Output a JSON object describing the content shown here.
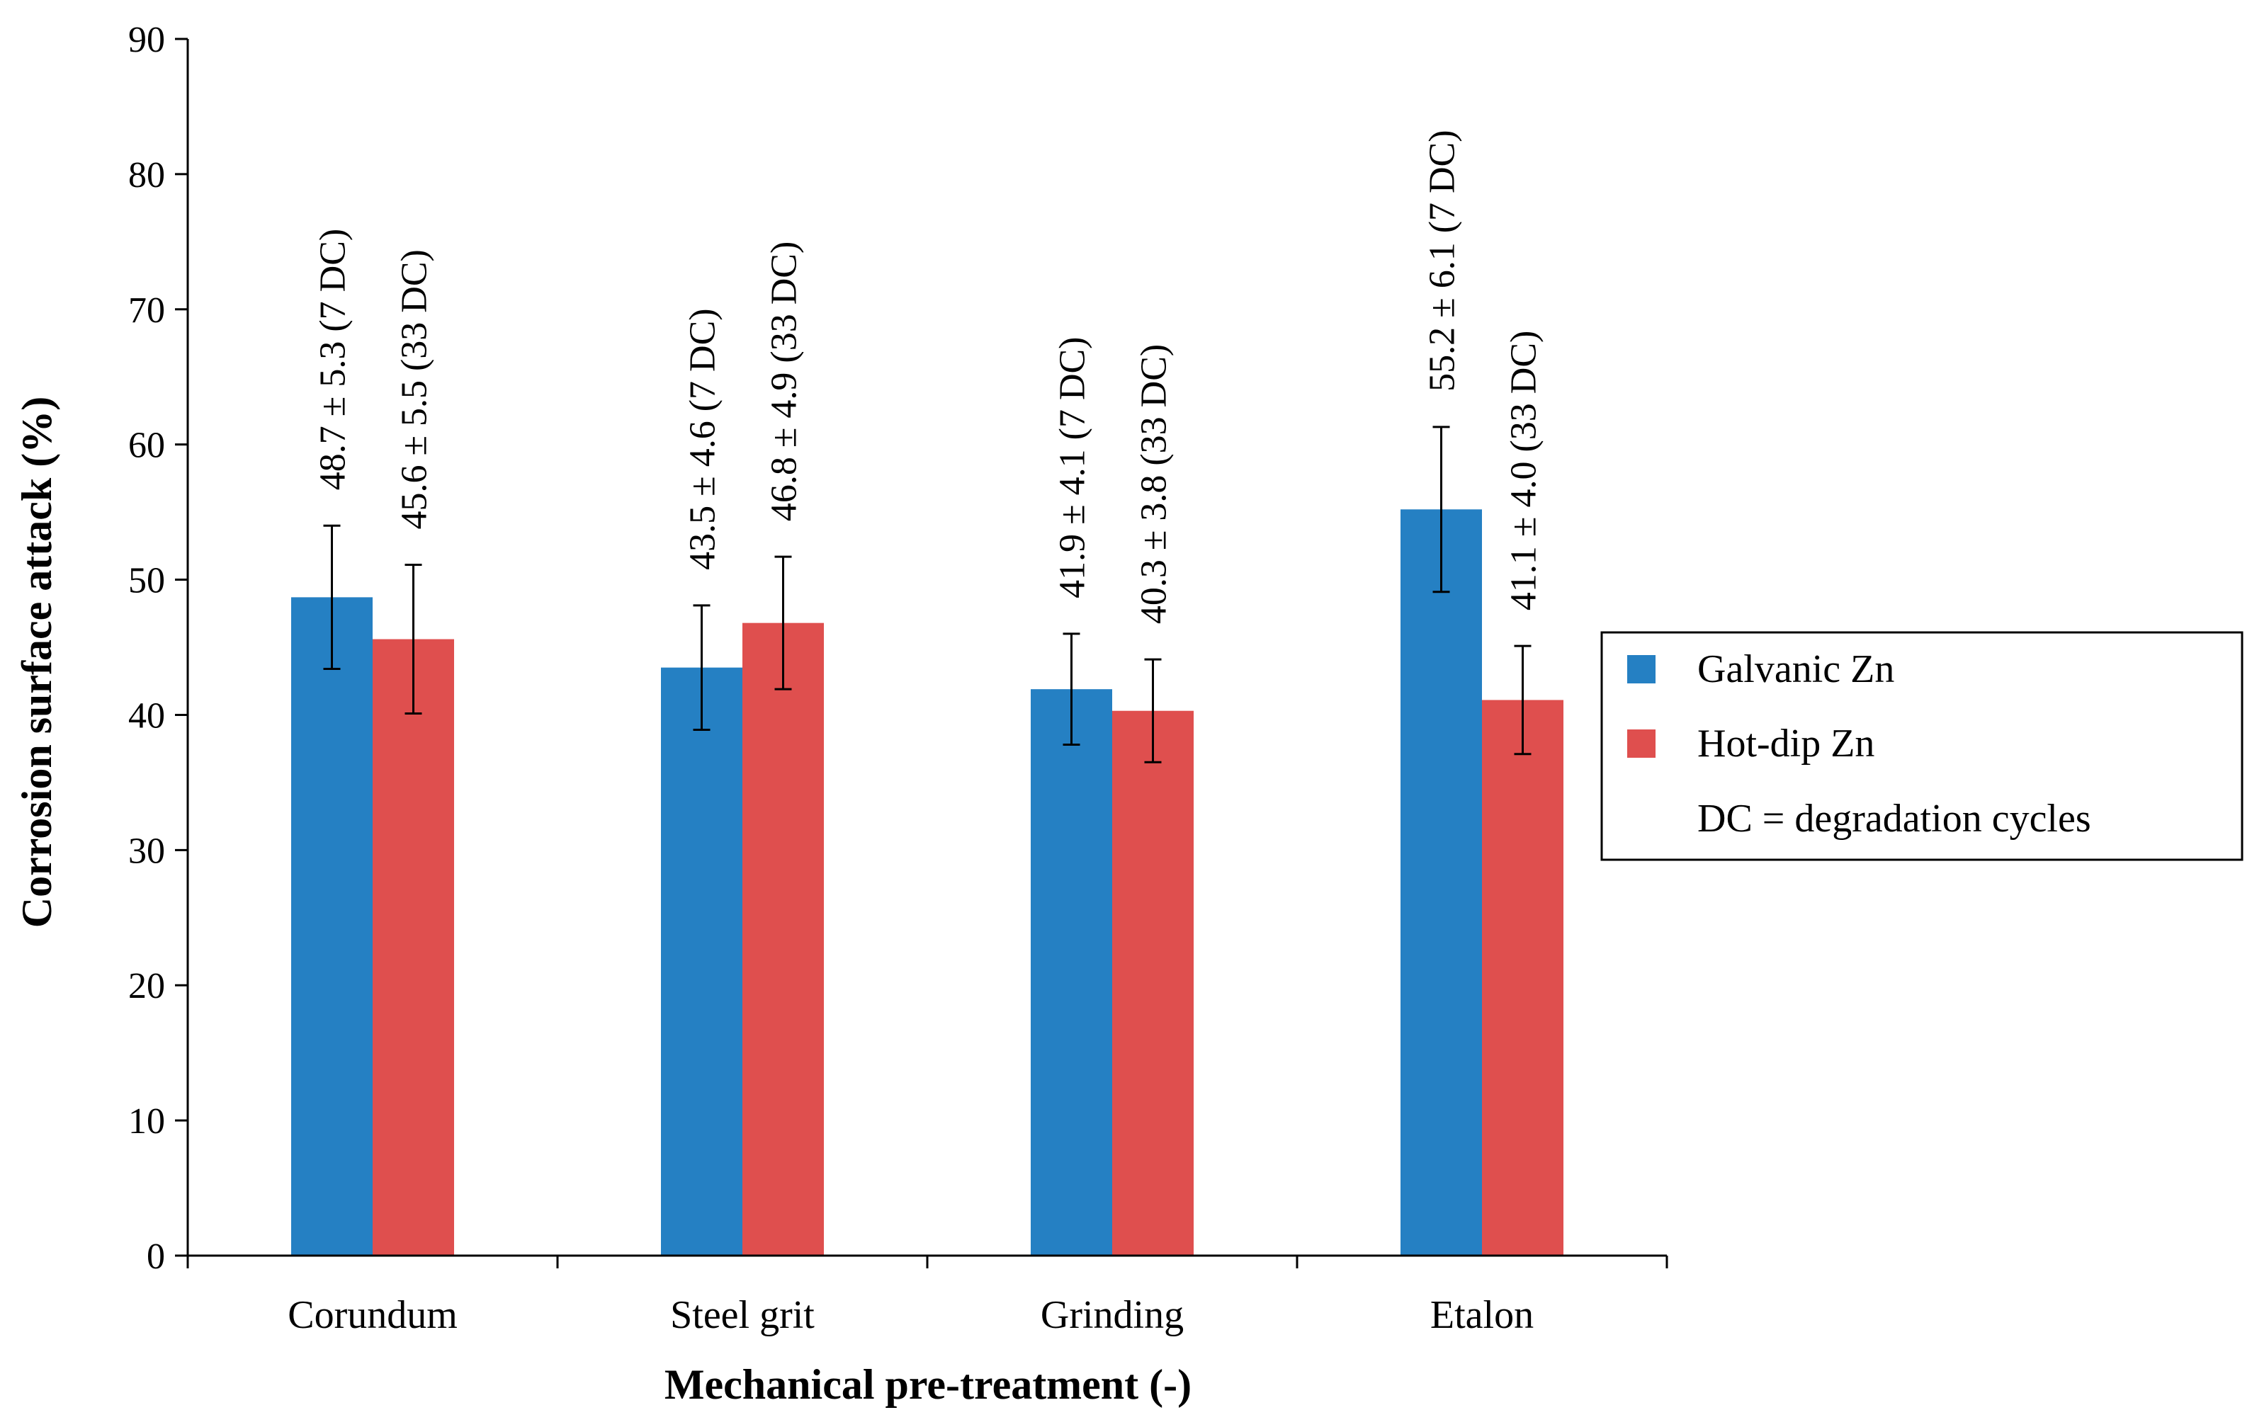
{
  "chart_data": {
    "type": "bar",
    "title": "",
    "xlabel": "Mechanical pre-treatment (-)",
    "ylabel": "Corrosion surface attack (%)",
    "ylim": [
      0,
      90
    ],
    "yticks": [
      0,
      10,
      20,
      30,
      40,
      50,
      60,
      70,
      80,
      90
    ],
    "categories": [
      "Corundum",
      "Steel grit",
      "Grinding",
      "Etalon"
    ],
    "series": [
      {
        "name": "Galvanic Zn",
        "color": "#2580c3",
        "values": [
          48.7,
          43.5,
          41.9,
          55.2
        ],
        "errors": [
          5.3,
          4.6,
          4.1,
          6.1
        ],
        "labels": [
          "48.7 ± 5.3 (7 DC)",
          "43.5 ± 4.6 (7 DC)",
          "41.9 ± 4.1 (7 DC)",
          "55.2 ± 6.1 (7 DC)"
        ]
      },
      {
        "name": "Hot-dip Zn",
        "color": "#df4f4e",
        "values": [
          45.6,
          46.8,
          40.3,
          41.1
        ],
        "errors": [
          5.5,
          4.9,
          3.8,
          4.0
        ],
        "labels": [
          "45.6 ± 5.5 (33 DC)",
          "46.8 ± 4.9 (33 DC)",
          "40.3 ± 3.8 (33 DC)",
          "41.1 ± 4.0 (33 DC)"
        ]
      }
    ],
    "legend": {
      "position": "right",
      "note": "DC = degradation cycles"
    }
  }
}
